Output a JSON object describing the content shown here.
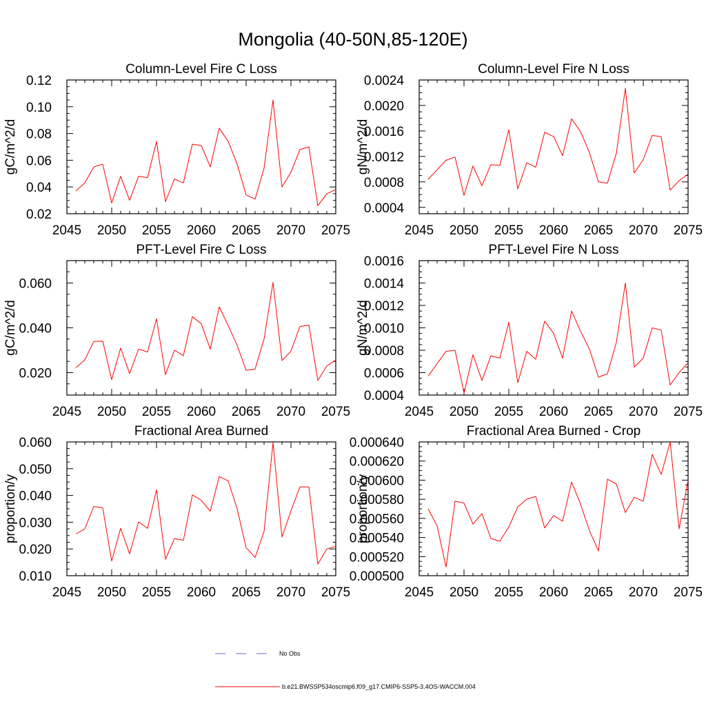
{
  "figure": {
    "title": "Mongolia (40-50N,85-120E)",
    "line_color": "#ff0000",
    "obs_color": "#6a6acd"
  },
  "legend": {
    "obs_label": "No Obs",
    "model_label": "b.e21.BWSSP534oscmip6.f09_g17.CMIP6-SSP5-3.4OS-WACCM.004"
  },
  "chart_data": [
    {
      "type": "line",
      "title": "Column-Level Fire C Loss",
      "ylabel": "gC/m^2/d",
      "xlim": [
        2045,
        2075
      ],
      "ylim": [
        0.02,
        0.12
      ],
      "xticks": [
        2045,
        2050,
        2055,
        2060,
        2065,
        2070,
        2075
      ],
      "yticks": [
        "0.02",
        "0.04",
        "0.06",
        "0.08",
        "0.10",
        "0.12"
      ],
      "x": [
        2046,
        2047,
        2048,
        2049,
        2050,
        2051,
        2052,
        2053,
        2054,
        2055,
        2056,
        2057,
        2058,
        2059,
        2060,
        2061,
        2062,
        2063,
        2064,
        2065,
        2066,
        2067,
        2068,
        2069,
        2070,
        2071,
        2072,
        2073,
        2074,
        2075
      ],
      "series": [
        {
          "values": [
            0.037,
            0.043,
            0.055,
            0.057,
            0.028,
            0.048,
            0.03,
            0.048,
            0.047,
            0.074,
            0.029,
            0.046,
            0.043,
            0.072,
            0.071,
            0.055,
            0.084,
            0.074,
            0.057,
            0.034,
            0.031,
            0.054,
            0.105,
            0.04,
            0.051,
            0.068,
            0.07,
            0.026,
            0.035,
            0.038
          ]
        }
      ]
    },
    {
      "type": "line",
      "title": "Column-Level Fire N Loss",
      "ylabel": "gN/m^2/d",
      "xlim": [
        2045,
        2075
      ],
      "ylim": [
        0.0003,
        0.0024
      ],
      "xticks": [
        2045,
        2050,
        2055,
        2060,
        2065,
        2070,
        2075
      ],
      "yticks": [
        "0.0004",
        "0.0008",
        "0.0012",
        "0.0016",
        "0.0020",
        "0.0024"
      ],
      "x": [
        2046,
        2047,
        2048,
        2049,
        2050,
        2051,
        2052,
        2053,
        2054,
        2055,
        2056,
        2057,
        2058,
        2059,
        2060,
        2061,
        2062,
        2063,
        2064,
        2065,
        2066,
        2067,
        2068,
        2069,
        2070,
        2071,
        2072,
        2073,
        2074,
        2075
      ],
      "series": [
        {
          "values": [
            0.00084,
            0.00099,
            0.00114,
            0.00119,
            0.00059,
            0.00105,
            0.00074,
            0.00107,
            0.00106,
            0.00162,
            0.00069,
            0.0011,
            0.00103,
            0.00158,
            0.00151,
            0.00121,
            0.00179,
            0.00159,
            0.00126,
            0.0008,
            0.00078,
            0.00125,
            0.00227,
            0.00094,
            0.00115,
            0.00153,
            0.00151,
            0.00067,
            0.00082,
            0.00092
          ]
        }
      ]
    },
    {
      "type": "line",
      "title": "PFT-Level Fire C Loss",
      "ylabel": "gC/m^2/d",
      "xlim": [
        2045,
        2075
      ],
      "ylim": [
        0.01,
        0.07
      ],
      "xticks": [
        2045,
        2050,
        2055,
        2060,
        2065,
        2070,
        2075
      ],
      "yticks": [
        "0.020",
        "0.040",
        "0.060"
      ],
      "x": [
        2046,
        2047,
        2048,
        2049,
        2050,
        2051,
        2052,
        2053,
        2054,
        2055,
        2056,
        2057,
        2058,
        2059,
        2060,
        2061,
        2062,
        2063,
        2064,
        2065,
        2066,
        2067,
        2068,
        2069,
        2070,
        2071,
        2072,
        2073,
        2074,
        2075
      ],
      "series": [
        {
          "values": [
            0.0222,
            0.0257,
            0.0339,
            0.0341,
            0.0169,
            0.031,
            0.0196,
            0.0305,
            0.0292,
            0.0441,
            0.0191,
            0.03,
            0.0276,
            0.045,
            0.0418,
            0.0305,
            0.0494,
            0.041,
            0.0322,
            0.021,
            0.0216,
            0.035,
            0.0603,
            0.0254,
            0.0296,
            0.0406,
            0.0412,
            0.0165,
            0.023,
            0.0256
          ]
        }
      ]
    },
    {
      "type": "line",
      "title": "PFT-Level Fire N Loss",
      "ylabel": "gN/m^2/d",
      "xlim": [
        2045,
        2075
      ],
      "ylim": [
        0.0004,
        0.0016
      ],
      "xticks": [
        2045,
        2050,
        2055,
        2060,
        2065,
        2070,
        2075
      ],
      "yticks": [
        "0.0004",
        "0.0006",
        "0.0008",
        "0.0010",
        "0.0012",
        "0.0014",
        "0.0016"
      ],
      "x": [
        2046,
        2047,
        2048,
        2049,
        2050,
        2051,
        2052,
        2053,
        2054,
        2055,
        2056,
        2057,
        2058,
        2059,
        2060,
        2061,
        2062,
        2063,
        2064,
        2065,
        2066,
        2067,
        2068,
        2069,
        2070,
        2071,
        2072,
        2073,
        2074,
        2075
      ],
      "series": [
        {
          "values": [
            0.00057,
            0.00068,
            0.00079,
            0.0008,
            0.00042,
            0.00076,
            0.00053,
            0.00075,
            0.00073,
            0.00105,
            0.00051,
            0.00079,
            0.00072,
            0.00106,
            0.00095,
            0.00073,
            0.00115,
            0.00097,
            0.00081,
            0.00056,
            0.00059,
            0.00087,
            0.0014,
            0.00065,
            0.00073,
            0.001,
            0.00098,
            0.00049,
            0.0006,
            0.00069
          ]
        }
      ]
    },
    {
      "type": "line",
      "title": "Fractional Area Burned",
      "ylabel": "proportion/y",
      "xlim": [
        2045,
        2075
      ],
      "ylim": [
        0.01,
        0.06
      ],
      "xticks": [
        2045,
        2050,
        2055,
        2060,
        2065,
        2070,
        2075
      ],
      "yticks": [
        "0.010",
        "0.020",
        "0.030",
        "0.040",
        "0.050",
        "0.060"
      ],
      "x": [
        2046,
        2047,
        2048,
        2049,
        2050,
        2051,
        2052,
        2053,
        2054,
        2055,
        2056,
        2057,
        2058,
        2059,
        2060,
        2061,
        2062,
        2063,
        2064,
        2065,
        2066,
        2067,
        2068,
        2069,
        2070,
        2071,
        2072,
        2073,
        2074,
        2075
      ],
      "series": [
        {
          "values": [
            0.0256,
            0.0275,
            0.0359,
            0.0353,
            0.0155,
            0.0277,
            0.0182,
            0.0301,
            0.0277,
            0.0421,
            0.0161,
            0.0239,
            0.0232,
            0.0402,
            0.0382,
            0.0341,
            0.0471,
            0.0454,
            0.035,
            0.0205,
            0.0168,
            0.0265,
            0.0598,
            0.0244,
            0.0342,
            0.0432,
            0.0432,
            0.0143,
            0.02,
            0.021
          ]
        }
      ]
    },
    {
      "type": "line",
      "title": "Fractional Area Burned - Crop",
      "ylabel": "proportion/y",
      "xlim": [
        2045,
        2075
      ],
      "ylim": [
        0.0005,
        0.00064
      ],
      "xticks": [
        2045,
        2050,
        2055,
        2060,
        2065,
        2070,
        2075
      ],
      "yticks": [
        "0.000500",
        "0.000520",
        "0.000540",
        "0.000560",
        "0.000580",
        "0.000600",
        "0.000620",
        "0.000640"
      ],
      "x": [
        2046,
        2047,
        2048,
        2049,
        2050,
        2051,
        2052,
        2053,
        2054,
        2055,
        2056,
        2057,
        2058,
        2059,
        2060,
        2061,
        2062,
        2063,
        2064,
        2065,
        2066,
        2067,
        2068,
        2069,
        2070,
        2071,
        2072,
        2073,
        2074,
        2075
      ],
      "series": [
        {
          "values": [
            0.00057,
            0.000552,
            0.000509,
            0.000578,
            0.000576,
            0.000554,
            0.000565,
            0.000539,
            0.000536,
            0.000551,
            0.000572,
            0.00058,
            0.000583,
            0.00055,
            0.000563,
            0.000557,
            0.000598,
            0.000575,
            0.000547,
            0.000526,
            0.000601,
            0.000596,
            0.000566,
            0.000582,
            0.000578,
            0.000627,
            0.000606,
            0.00064,
            0.000549,
            0.0006
          ]
        }
      ]
    }
  ]
}
